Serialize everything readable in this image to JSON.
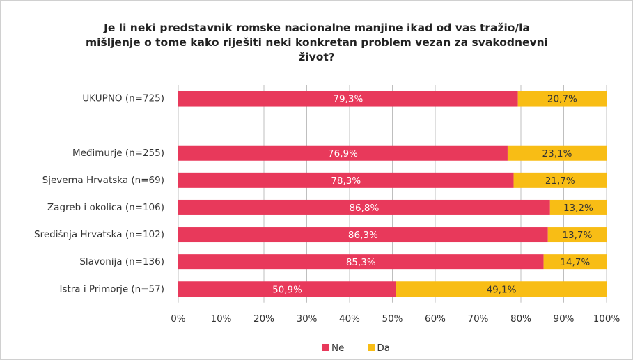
{
  "chart_data": {
    "type": "stacked-bar-horizontal",
    "title": "Je li neki predstavnik romske nacionalne manjine ikad od vas tražio/la mišljenje o tome kako riješiti neki konkretan problem vezan za svakodnevni život?",
    "categories": [
      "UKUPNO (n=725)",
      null,
      "Međimurje (n=255)",
      "Sjeverna Hrvatska (n=69)",
      "Zagreb i okolica (n=106)",
      "Središnja Hrvatska (n=102)",
      "Slavonija (n=136)",
      "Istra i Primorje (n=57)"
    ],
    "series": [
      {
        "name": "Ne",
        "color": "#e8395b",
        "values": [
          79.3,
          null,
          76.9,
          78.3,
          86.8,
          86.3,
          85.3,
          50.9
        ],
        "value_labels": [
          "79,3%",
          null,
          "76,9%",
          "78,3%",
          "86,8%",
          "86,3%",
          "85,3%",
          "50,9%"
        ]
      },
      {
        "name": "Da",
        "color": "#f8bd15",
        "values": [
          20.7,
          null,
          23.1,
          21.7,
          13.2,
          13.7,
          14.7,
          49.1
        ],
        "value_labels": [
          "20,7%",
          null,
          "23,1%",
          "21,7%",
          "13,2%",
          "13,7%",
          "14,7%",
          "49,1%"
        ]
      }
    ],
    "xlim": [
      0,
      100
    ],
    "xticks": [
      {
        "value": 0,
        "label": "0%"
      },
      {
        "value": 10,
        "label": "10%"
      },
      {
        "value": 20,
        "label": "20%"
      },
      {
        "value": 30,
        "label": "30%"
      },
      {
        "value": 40,
        "label": "40%"
      },
      {
        "value": 50,
        "label": "50%"
      },
      {
        "value": 60,
        "label": "60%"
      },
      {
        "value": 70,
        "label": "70%"
      },
      {
        "value": 80,
        "label": "80%"
      },
      {
        "value": 90,
        "label": "90%"
      },
      {
        "value": 100,
        "label": "100%"
      }
    ],
    "grid": true,
    "legend": "bottom"
  }
}
